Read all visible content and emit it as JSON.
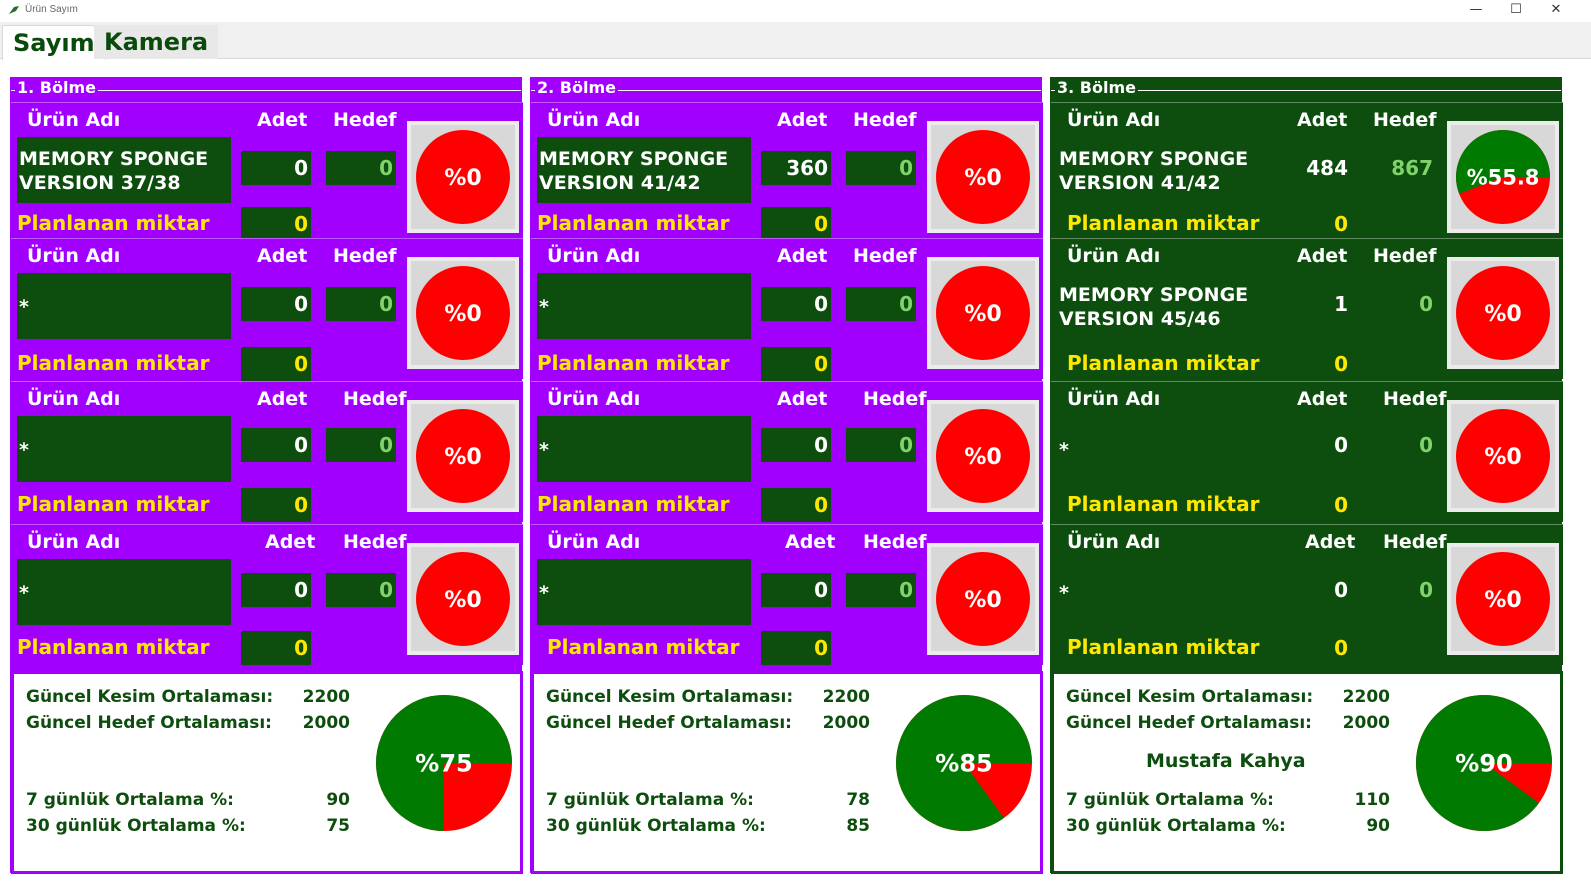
{
  "window": {
    "title": "Ürün Sayım",
    "minimize_glyph": "—",
    "maximize_glyph": "☐",
    "close_glyph": "✕"
  },
  "tabs": [
    {
      "label": "Sayım",
      "active": true
    },
    {
      "label": "Kamera",
      "active": false
    }
  ],
  "labels": {
    "urun_adi": "Ürün Adı",
    "adet": "Adet",
    "hedef": "Hedef",
    "planlanan": "Planlanan miktar",
    "guncel_kesim": "Güncel Kesim Ortalaması:",
    "guncel_hedef": "Güncel Hedef Ortalaması:",
    "yedi_gunluk": "7 günlük Ortalama %:",
    "otuz_gunluk": "30 günlük Ortalama %:"
  },
  "colors": {
    "purple": "#a100ff",
    "dark_green": "#0d4d0d",
    "pie_green": "#007a00",
    "pie_red": "#ff0000",
    "yellow": "#ffe800"
  },
  "sections": [
    {
      "title": "1. Bölme",
      "theme": "purple",
      "rows": [
        {
          "name_line1": "MEMORY SPONGE",
          "name_line2": "VERSION 37/38",
          "adet": "0",
          "hedef": "0",
          "plan": "0",
          "pct_label": "%0",
          "pct": 0
        },
        {
          "name_line1": "*",
          "name_line2": "",
          "adet": "0",
          "hedef": "0",
          "plan": "0",
          "pct_label": "%0",
          "pct": 0
        },
        {
          "name_line1": "*",
          "name_line2": "",
          "adet": "0",
          "hedef": "0",
          "plan": "0",
          "pct_label": "%0",
          "pct": 0
        },
        {
          "name_line1": "*",
          "name_line2": "",
          "adet": "0",
          "hedef": "0",
          "plan": "0",
          "pct_label": "%0",
          "pct": 0
        }
      ],
      "summary": {
        "guncel_kesim": "2200",
        "guncel_hedef": "2000",
        "operator": "",
        "yedi": "90",
        "otuz": "75",
        "pct_label": "%75",
        "pct": 75
      }
    },
    {
      "title": "2. Bölme",
      "theme": "purple",
      "rows": [
        {
          "name_line1": "MEMORY SPONGE",
          "name_line2": "VERSION 41/42",
          "adet": "360",
          "hedef": "0",
          "plan": "0",
          "pct_label": "%0",
          "pct": 0
        },
        {
          "name_line1": "*",
          "name_line2": "",
          "adet": "0",
          "hedef": "0",
          "plan": "0",
          "pct_label": "%0",
          "pct": 0
        },
        {
          "name_line1": "*",
          "name_line2": "",
          "adet": "0",
          "hedef": "0",
          "plan": "0",
          "pct_label": "%0",
          "pct": 0
        },
        {
          "name_line1": "*",
          "name_line2": "",
          "adet": "0",
          "hedef": "0",
          "plan": "0",
          "pct_label": "%0",
          "pct": 0
        }
      ],
      "summary": {
        "guncel_kesim": "2200",
        "guncel_hedef": "2000",
        "operator": "",
        "yedi": "78",
        "otuz": "85",
        "pct_label": "%85",
        "pct": 85
      }
    },
    {
      "title": "3. Bölme",
      "theme": "green",
      "rows": [
        {
          "name_line1": "MEMORY SPONGE",
          "name_line2": "VERSION 41/42",
          "adet": "484",
          "hedef": "867",
          "plan": "0",
          "pct_label": "%55.8",
          "pct": 55.8
        },
        {
          "name_line1": "MEMORY SPONGE",
          "name_line2": "VERSION 45/46",
          "adet": "1",
          "hedef": "0",
          "plan": "0",
          "pct_label": "%0",
          "pct": 0
        },
        {
          "name_line1": "*",
          "name_line2": "",
          "adet": "0",
          "hedef": "0",
          "plan": "0",
          "pct_label": "%0",
          "pct": 0
        },
        {
          "name_line1": "*",
          "name_line2": "",
          "adet": "0",
          "hedef": "0",
          "plan": "0",
          "pct_label": "%0",
          "pct": 0
        }
      ],
      "summary": {
        "guncel_kesim": "2200",
        "guncel_hedef": "2000",
        "operator": "Mustafa Kahya",
        "yedi": "110",
        "otuz": "90",
        "pct_label": "%90",
        "pct": 90
      }
    }
  ]
}
